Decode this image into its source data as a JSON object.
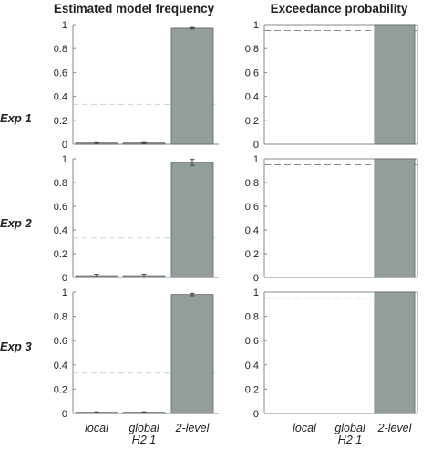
{
  "titles": {
    "left": "Estimated model frequency",
    "right": "Exceedance probability"
  },
  "row_labels": [
    "Exp 1",
    "Exp 2",
    "Exp 3"
  ],
  "categories": [
    "local",
    "global H2 1",
    "2-level"
  ],
  "colors": {
    "bar": "#939e9b",
    "bar_edge": "#5c6462",
    "axis": "#888888",
    "threshold_left": "#d0d0d0",
    "threshold_right": "#8a8a8a",
    "error": "#444444"
  },
  "chart_data": [
    {
      "type": "bar",
      "panel": "Exp 1 - Estimated model frequency",
      "categories": [
        "local",
        "global H2 1",
        "2-level"
      ],
      "values": [
        0.01,
        0.01,
        0.97
      ],
      "errors": [
        0.003,
        0.004,
        0.006
      ],
      "ylim": [
        0,
        1
      ],
      "yticks": [
        0,
        0.2,
        0.4,
        0.6,
        0.8,
        1
      ],
      "reference_line": 0.333,
      "reference_style": "dashed"
    },
    {
      "type": "bar",
      "panel": "Exp 1 - Exceedance probability",
      "categories": [
        "local",
        "global H2 1",
        "2-level"
      ],
      "values": [
        0,
        0,
        1
      ],
      "ylim": [
        0,
        1
      ],
      "yticks": [
        0,
        0.2,
        0.4,
        0.6,
        0.8,
        1
      ],
      "reference_line": 0.95,
      "reference_style": "dashed"
    },
    {
      "type": "bar",
      "panel": "Exp 2 - Estimated model frequency",
      "categories": [
        "local",
        "global H2 1",
        "2-level"
      ],
      "values": [
        0.015,
        0.015,
        0.97
      ],
      "errors": [
        0.012,
        0.012,
        0.025
      ],
      "ylim": [
        0,
        1
      ],
      "yticks": [
        0,
        0.2,
        0.4,
        0.6,
        0.8,
        1
      ],
      "reference_line": 0.333,
      "reference_style": "dashed"
    },
    {
      "type": "bar",
      "panel": "Exp 2 - Exceedance probability",
      "categories": [
        "local",
        "global H2 1",
        "2-level"
      ],
      "values": [
        0,
        0,
        1
      ],
      "ylim": [
        0,
        1
      ],
      "yticks": [
        0,
        0.2,
        0.4,
        0.6,
        0.8,
        1
      ],
      "reference_line": 0.95,
      "reference_style": "dashed"
    },
    {
      "type": "bar",
      "panel": "Exp 3 - Estimated model frequency",
      "categories": [
        "local",
        "global H2 1",
        "2-level"
      ],
      "values": [
        0.01,
        0.01,
        0.98
      ],
      "errors": [
        0.003,
        0.003,
        0.01
      ],
      "ylim": [
        0,
        1
      ],
      "yticks": [
        0,
        0.2,
        0.4,
        0.6,
        0.8,
        1
      ],
      "reference_line": 0.333,
      "reference_style": "dashed"
    },
    {
      "type": "bar",
      "panel": "Exp 3 - Exceedance probability",
      "categories": [
        "local",
        "global H2 1",
        "2-level"
      ],
      "values": [
        0,
        0,
        1
      ],
      "ylim": [
        0,
        1
      ],
      "yticks": [
        0,
        0.2,
        0.4,
        0.6,
        0.8,
        1
      ],
      "reference_line": 0.95,
      "reference_style": "dashed"
    }
  ]
}
